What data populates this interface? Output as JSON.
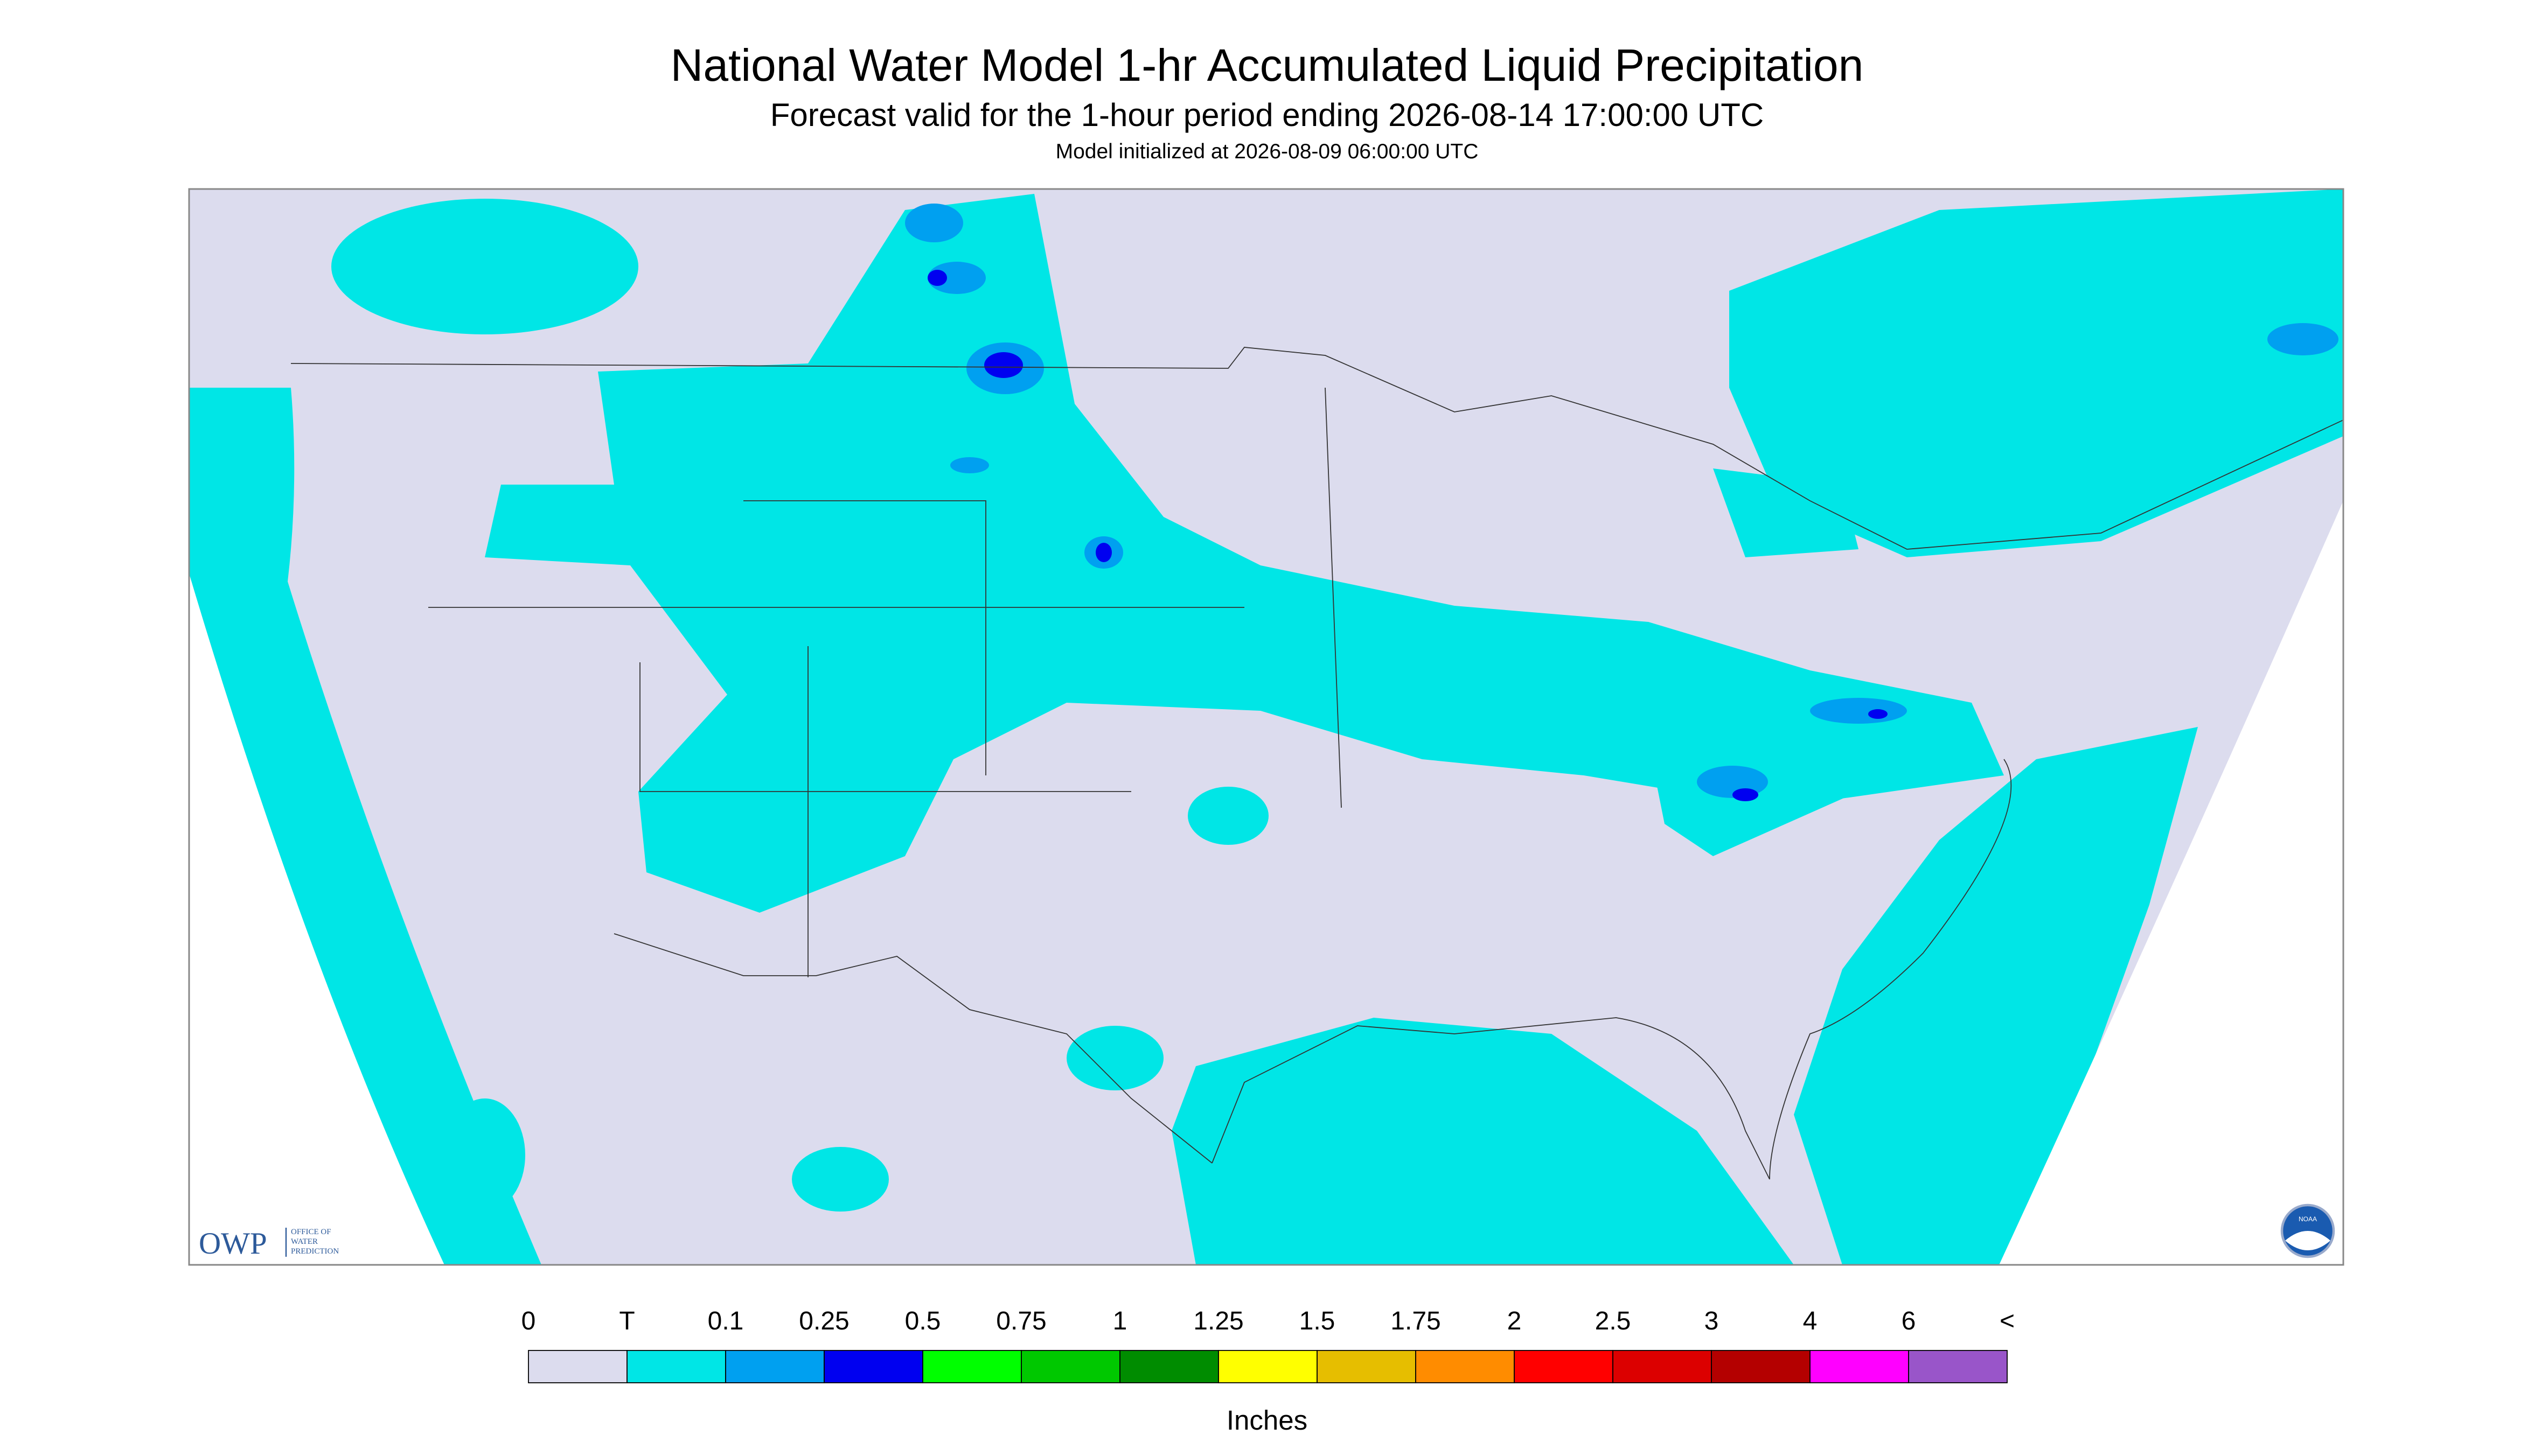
{
  "header": {
    "title": "National Water Model 1-hr Accumulated Liquid Precipitation",
    "subtitle": "Forecast valid for the 1-hour period ending 2026-08-14 17:00:00 UTC",
    "note": "Model initialized at 2026-08-09 06:00:00 UTC"
  },
  "logos": {
    "owp": "OWP",
    "owp_text": [
      "OFFICE OF",
      "WATER",
      "PREDICTION"
    ],
    "noaa": "NOAA"
  },
  "legend": {
    "labels": [
      "0",
      "T",
      "0.1",
      "0.25",
      "0.5",
      "0.75",
      "1",
      "1.25",
      "1.5",
      "1.75",
      "2",
      "2.5",
      "3",
      "4",
      "6",
      "<"
    ],
    "colors": [
      "#dcdcee",
      "#00e6e6",
      "#00a0f0",
      "#0000f0",
      "#00ff00",
      "#00c800",
      "#008c00",
      "#ffff00",
      "#e6be00",
      "#ff8c00",
      "#ff0000",
      "#dc0000",
      "#b40000",
      "#ff00ff",
      "#9955c9"
    ],
    "units": "Inches"
  }
}
